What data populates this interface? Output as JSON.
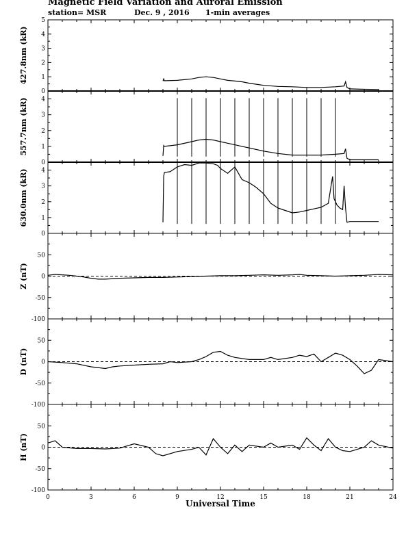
{
  "header": {
    "title": "Magnetic Field Variation and Auroral Emission",
    "station": "station= MSR",
    "date": "Dec. 9  , 2016",
    "averaging": "1-min averages"
  },
  "chart_data": [
    {
      "type": "line",
      "ylabel": "427.8nm (kR)",
      "ylim": [
        0,
        5
      ],
      "yticks": [
        0,
        1,
        2,
        3,
        4,
        5
      ],
      "xlim": [
        0,
        24
      ],
      "zero_line": "solid",
      "x": [
        8,
        8.05,
        8.1,
        9,
        10,
        10.5,
        11,
        11.5,
        12,
        12.5,
        13,
        13.5,
        14,
        15,
        16,
        17,
        18,
        19,
        20,
        20.6,
        20.7,
        20.8,
        21,
        22,
        23
      ],
      "values": [
        0.7,
        0.85,
        0.72,
        0.75,
        0.85,
        0.95,
        1.0,
        0.95,
        0.85,
        0.75,
        0.7,
        0.65,
        0.55,
        0.4,
        0.32,
        0.3,
        0.25,
        0.25,
        0.3,
        0.35,
        0.65,
        0.25,
        0.15,
        0.12,
        0.1
      ]
    },
    {
      "type": "line",
      "ylabel": "557.7nm (kR)",
      "ylim": [
        0,
        4.5
      ],
      "yticks": [
        0,
        1,
        2,
        3,
        4
      ],
      "xlim": [
        0,
        24
      ],
      "zero_line": "solid",
      "x": [
        8,
        8.05,
        8.1,
        9,
        10,
        10.5,
        11,
        11.5,
        12,
        12.5,
        13,
        13.5,
        14,
        15,
        16,
        17,
        18,
        19,
        20,
        20.6,
        20.7,
        20.8,
        21,
        22,
        23
      ],
      "values": [
        0.4,
        1.05,
        1.0,
        1.1,
        1.3,
        1.4,
        1.45,
        1.4,
        1.3,
        1.2,
        1.1,
        1.0,
        0.9,
        0.7,
        0.55,
        0.45,
        0.45,
        0.45,
        0.5,
        0.55,
        0.85,
        0.25,
        0.15,
        0.15,
        0.15
      ],
      "spikes_x": [
        9,
        10,
        11,
        12,
        13,
        14,
        15,
        16,
        17,
        18,
        19,
        20
      ],
      "spike_top": 4.05,
      "spike_bottom": 0.35
    },
    {
      "type": "line",
      "ylabel": "630.0nm (kR)",
      "ylim": [
        0,
        4.5
      ],
      "yticks": [
        0,
        1,
        2,
        3,
        4
      ],
      "xlim": [
        0,
        24
      ],
      "zero_line": "none",
      "x": [
        8,
        8.05,
        8.1,
        8.5,
        9,
        9.5,
        10,
        10.5,
        11,
        11.5,
        11.8,
        12,
        12.5,
        13,
        13.5,
        14,
        14.5,
        15,
        15.5,
        16,
        16.5,
        17,
        17.5,
        18,
        18.5,
        19,
        19.5,
        19.8,
        19.9,
        20.1,
        20.3,
        20.5,
        20.6,
        20.7,
        20.8,
        21,
        22,
        23
      ],
      "values": [
        0.7,
        3.6,
        3.85,
        3.9,
        4.2,
        4.35,
        4.3,
        4.45,
        4.45,
        4.4,
        4.3,
        4.1,
        3.8,
        4.2,
        3.4,
        3.2,
        2.9,
        2.5,
        1.9,
        1.6,
        1.45,
        1.3,
        1.35,
        1.45,
        1.55,
        1.65,
        1.9,
        3.6,
        2.2,
        1.8,
        1.6,
        1.5,
        3.0,
        1.6,
        0.7,
        0.75,
        0.75,
        0.75
      ],
      "spikes_x": [
        9,
        10,
        11,
        12,
        13,
        14,
        15,
        16,
        17,
        18,
        19,
        20
      ],
      "spike_top": 4.5,
      "spike_bottom": 0.6
    },
    {
      "type": "line",
      "ylabel": "Z (nT)",
      "ylim": [
        -100,
        100
      ],
      "yticks": [
        -100,
        -50,
        0,
        50
      ],
      "xlim": [
        0,
        24
      ],
      "zero_line": "dashed",
      "x": [
        0,
        0.5,
        1,
        1.5,
        2,
        2.5,
        3,
        3.5,
        4,
        5,
        6,
        7,
        8,
        9,
        10,
        11,
        12,
        13,
        14,
        15,
        16,
        17,
        17.5,
        18,
        19,
        20,
        21,
        22,
        23,
        24
      ],
      "values": [
        2,
        4,
        3,
        2,
        0,
        -2,
        -5,
        -7,
        -7,
        -5,
        -4,
        -3,
        -3,
        -2,
        -1,
        0,
        1,
        1,
        2,
        3,
        2,
        3,
        4,
        2,
        1,
        0,
        1,
        2,
        4,
        3
      ]
    },
    {
      "type": "line",
      "ylabel": "D (nT)",
      "ylim": [
        -100,
        100
      ],
      "yticks": [
        -100,
        -50,
        0,
        50
      ],
      "xlim": [
        0,
        24
      ],
      "zero_line": "dashed",
      "x": [
        0,
        1,
        2,
        3,
        4,
        4.5,
        5,
        6,
        7,
        8,
        8.5,
        9,
        10,
        10.5,
        11,
        11.5,
        12,
        12.5,
        13,
        14,
        15,
        15.5,
        16,
        17,
        17.5,
        18,
        18.5,
        19,
        19.5,
        20,
        20.5,
        21,
        21.5,
        22,
        22.5,
        23,
        24
      ],
      "values": [
        0,
        -2,
        -5,
        -12,
        -16,
        -12,
        -10,
        -8,
        -6,
        -5,
        0,
        -2,
        0,
        5,
        12,
        22,
        24,
        15,
        10,
        5,
        5,
        10,
        5,
        10,
        15,
        12,
        18,
        0,
        10,
        20,
        15,
        5,
        -10,
        -28,
        -20,
        5,
        0
      ]
    },
    {
      "type": "line",
      "ylabel": "H (nT)",
      "ylim": [
        -100,
        100
      ],
      "yticks": [
        -100,
        -50,
        0,
        50
      ],
      "xlim": [
        0,
        24
      ],
      "zero_line": "dashed",
      "x": [
        0,
        0.5,
        1,
        2,
        3,
        4,
        5,
        6,
        7,
        7.5,
        8,
        9,
        10,
        10.5,
        11,
        11.5,
        12,
        12.5,
        13,
        13.5,
        14,
        15,
        15.5,
        16,
        17,
        17.5,
        18,
        18.5,
        19,
        19.5,
        20,
        20.5,
        21,
        22,
        22.5,
        23,
        24
      ],
      "values": [
        10,
        15,
        0,
        -3,
        -3,
        -4,
        -2,
        8,
        0,
        -15,
        -20,
        -10,
        -5,
        0,
        -18,
        20,
        0,
        -15,
        5,
        -10,
        5,
        0,
        10,
        0,
        5,
        -5,
        22,
        5,
        -8,
        20,
        0,
        -8,
        -10,
        0,
        15,
        5,
        -2
      ]
    }
  ],
  "x_axis": {
    "label": "Universal Time",
    "xlim": [
      0,
      24
    ],
    "ticks": [
      0,
      3,
      6,
      9,
      12,
      15,
      18,
      21,
      24
    ]
  }
}
